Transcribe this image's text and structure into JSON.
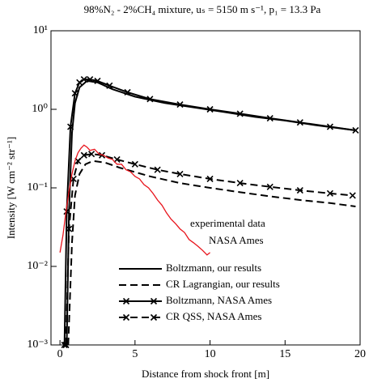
{
  "chart_data": {
    "type": "line",
    "title": "98%N₂ - 2%CH₄ mixture,  uₛ = 5150 m s⁻¹,  p₁ = 13.3 Pa",
    "x_label": "Distance from shock front [m]",
    "y_label": "Intensity [W cm⁻² str⁻¹]",
    "annotations": [
      "experimental data",
      "NASA Ames"
    ],
    "xlim": [
      -0.6,
      20
    ],
    "xticks": [
      0,
      5,
      10,
      15,
      20
    ],
    "ylim": [
      0.001,
      10
    ],
    "yscale": "log",
    "yticks": [
      {
        "value": 0.001,
        "label": "10⁻³"
      },
      {
        "value": 0.01,
        "label": "10⁻²"
      },
      {
        "value": 0.1,
        "label": "10⁻¹"
      },
      {
        "value": 1,
        "label": "10⁰"
      },
      {
        "value": 10,
        "label": "10¹"
      }
    ],
    "series": [
      {
        "name": "Boltzmann, our results",
        "color": "#000000",
        "dash": false,
        "markers": false,
        "x": [
          0.45,
          0.6,
          0.8,
          1.0,
          1.3,
          1.8,
          2.5,
          3.5,
          5,
          7,
          9,
          11,
          13,
          15,
          17,
          19.7
        ],
        "values": [
          0.001,
          0.05,
          0.5,
          1.2,
          1.9,
          2.3,
          2.2,
          1.8,
          1.45,
          1.2,
          1.05,
          0.92,
          0.8,
          0.72,
          0.63,
          0.54
        ]
      },
      {
        "name": "CR Lagrangian, our results",
        "color": "#000000",
        "dash": true,
        "markers": false,
        "x": [
          0.55,
          0.8,
          1.0,
          1.3,
          1.7,
          2.2,
          3,
          4,
          6,
          8,
          10,
          12,
          14,
          16,
          18,
          19.7
        ],
        "values": [
          0.001,
          0.02,
          0.08,
          0.15,
          0.2,
          0.22,
          0.21,
          0.18,
          0.14,
          0.115,
          0.1,
          0.088,
          0.078,
          0.07,
          0.064,
          0.058
        ]
      },
      {
        "name": "Boltzmann, NASA Ames",
        "color": "#000000",
        "dash": false,
        "markers": true,
        "x": [
          0.3,
          0.45,
          0.7,
          1.0,
          1.3,
          1.6,
          2.0,
          2.5,
          3.3,
          4.5,
          6,
          8,
          10,
          12,
          14,
          16,
          18,
          19.7
        ],
        "values": [
          0.001,
          0.05,
          0.6,
          1.6,
          2.2,
          2.4,
          2.4,
          2.3,
          2.0,
          1.65,
          1.35,
          1.15,
          1.0,
          0.88,
          0.77,
          0.68,
          0.6,
          0.54
        ]
      },
      {
        "name": "CR QSS, NASA Ames",
        "color": "#000000",
        "dash": true,
        "markers": true,
        "x": [
          0.4,
          0.6,
          0.9,
          1.2,
          1.6,
          2.1,
          2.8,
          3.8,
          5,
          6.5,
          8,
          10,
          12,
          14,
          16,
          18,
          19.5
        ],
        "values": [
          0.001,
          0.03,
          0.13,
          0.22,
          0.26,
          0.27,
          0.26,
          0.23,
          0.2,
          0.17,
          0.15,
          0.13,
          0.115,
          0.103,
          0.093,
          0.085,
          0.08
        ]
      },
      {
        "color": "#e8131b",
        "dash": false,
        "markers": false,
        "x": [
          0.0,
          0.2,
          0.4,
          0.6,
          0.8,
          1.0,
          1.2,
          1.4,
          1.6,
          1.8,
          2.0,
          2.3,
          2.6,
          2.9,
          3.2,
          3.5,
          3.8,
          4.1,
          4.4,
          4.7,
          5.0,
          5.3,
          5.6,
          5.9,
          6.2,
          6.5,
          6.8,
          7.1,
          7.4,
          7.7,
          8.0,
          8.3,
          8.6,
          8.9,
          9.2,
          9.5,
          9.8,
          10.0
        ],
        "values": [
          0.015,
          0.025,
          0.05,
          0.09,
          0.15,
          0.22,
          0.28,
          0.32,
          0.35,
          0.33,
          0.3,
          0.31,
          0.27,
          0.26,
          0.24,
          0.23,
          0.2,
          0.2,
          0.17,
          0.16,
          0.14,
          0.13,
          0.11,
          0.1,
          0.085,
          0.07,
          0.06,
          0.048,
          0.04,
          0.035,
          0.03,
          0.027,
          0.022,
          0.02,
          0.018,
          0.016,
          0.014,
          0.015
        ]
      }
    ]
  }
}
